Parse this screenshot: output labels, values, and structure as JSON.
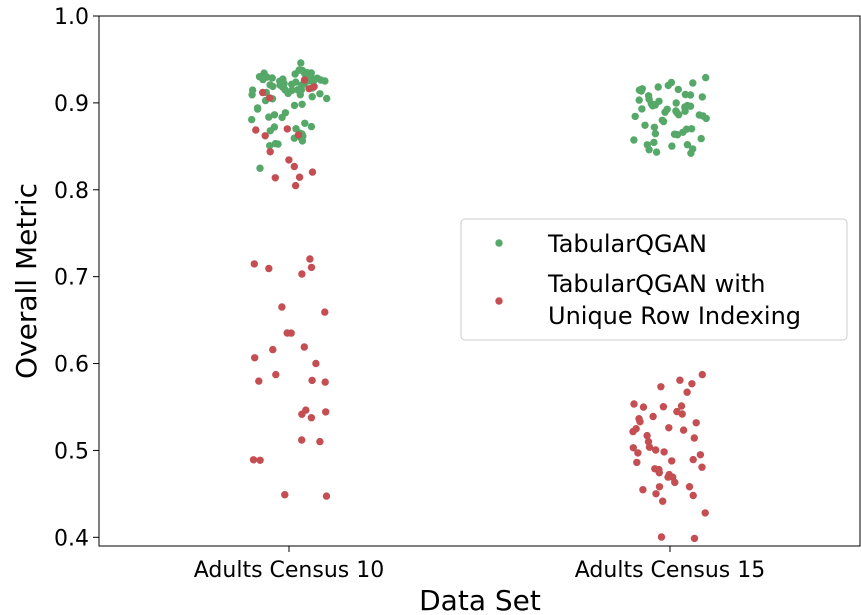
{
  "chart_data": {
    "type": "scatter",
    "style": "strip-plot",
    "title": "",
    "xlabel": "Data Set",
    "ylabel": "Overall Metric",
    "categories": [
      "Adults Census 10",
      "Adults Census 15"
    ],
    "ylim": [
      0.39,
      1.0
    ],
    "yticks": [
      "0.4",
      "0.5",
      "0.6",
      "0.7",
      "0.8",
      "0.9",
      "1.0"
    ],
    "grid": false,
    "legend_placement": "center-right",
    "series": [
      {
        "name": "TabularQGAN",
        "color": "#55a868",
        "points": [
          {
            "category": "Adults Census 10",
            "values": [
              0.945,
              0.94,
              0.938,
              0.936,
              0.935,
              0.934,
              0.933,
              0.932,
              0.931,
              0.93,
              0.93,
              0.929,
              0.928,
              0.928,
              0.927,
              0.926,
              0.926,
              0.925,
              0.925,
              0.924,
              0.924,
              0.923,
              0.923,
              0.922,
              0.922,
              0.921,
              0.921,
              0.92,
              0.92,
              0.919,
              0.919,
              0.918,
              0.918,
              0.917,
              0.917,
              0.916,
              0.916,
              0.915,
              0.915,
              0.914,
              0.913,
              0.912,
              0.911,
              0.91,
              0.909,
              0.908,
              0.906,
              0.905,
              0.903,
              0.9,
              0.898,
              0.895,
              0.893,
              0.89,
              0.888,
              0.885,
              0.883,
              0.88,
              0.878,
              0.875,
              0.872,
              0.87,
              0.868,
              0.866,
              0.864,
              0.862,
              0.86,
              0.858,
              0.856,
              0.854,
              0.852,
              0.85,
              0.825
            ]
          },
          {
            "category": "Adults Census 15",
            "values": [
              0.93,
              0.925,
              0.922,
              0.92,
              0.918,
              0.916,
              0.915,
              0.913,
              0.912,
              0.91,
              0.909,
              0.908,
              0.906,
              0.905,
              0.904,
              0.903,
              0.902,
              0.9,
              0.899,
              0.898,
              0.897,
              0.896,
              0.895,
              0.894,
              0.893,
              0.892,
              0.891,
              0.89,
              0.889,
              0.888,
              0.887,
              0.886,
              0.885,
              0.884,
              0.882,
              0.88,
              0.878,
              0.876,
              0.874,
              0.872,
              0.87,
              0.868,
              0.866,
              0.864,
              0.862,
              0.86,
              0.858,
              0.856,
              0.854,
              0.852,
              0.85,
              0.848,
              0.846,
              0.845,
              0.843
            ]
          }
        ]
      },
      {
        "name": "TabularQGAN with\nUnique Row Indexing",
        "color": "#c44e52",
        "points": [
          {
            "category": "Adults Census 10",
            "values": [
              0.925,
              0.92,
              0.915,
              0.91,
              0.905,
              0.87,
              0.868,
              0.865,
              0.86,
              0.845,
              0.835,
              0.825,
              0.82,
              0.815,
              0.812,
              0.805,
              0.72,
              0.717,
              0.712,
              0.708,
              0.705,
              0.665,
              0.66,
              0.636,
              0.635,
              0.62,
              0.615,
              0.605,
              0.6,
              0.585,
              0.582,
              0.581,
              0.58,
              0.548,
              0.545,
              0.54,
              0.537,
              0.512,
              0.51,
              0.49,
              0.487,
              0.447,
              0.447
            ]
          },
          {
            "category": "Adults Census 15",
            "values": [
              0.587,
              0.583,
              0.578,
              0.572,
              0.565,
              0.555,
              0.552,
              0.55,
              0.548,
              0.545,
              0.54,
              0.538,
              0.535,
              0.532,
              0.53,
              0.528,
              0.526,
              0.523,
              0.52,
              0.518,
              0.515,
              0.51,
              0.505,
              0.502,
              0.5,
              0.498,
              0.495,
              0.493,
              0.49,
              0.488,
              0.485,
              0.482,
              0.48,
              0.477,
              0.475,
              0.472,
              0.47,
              0.467,
              0.465,
              0.46,
              0.458,
              0.455,
              0.45,
              0.448,
              0.443,
              0.428,
              0.4,
              0.399
            ]
          }
        ]
      }
    ]
  }
}
